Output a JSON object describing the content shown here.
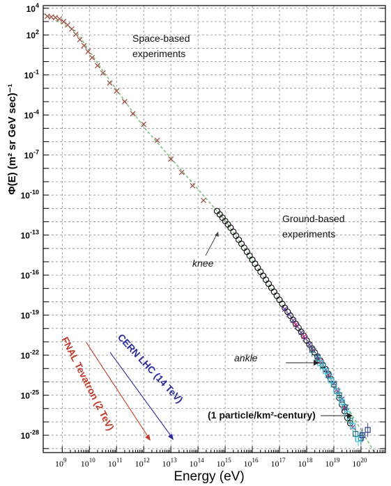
{
  "chart_data": {
    "type": "scatter",
    "title": "",
    "xlabel": "Energy (eV)",
    "ylabel": "Φ(E) (m² sr GeV sec)⁻¹",
    "xscale": "log",
    "yscale": "log",
    "xlim_exp": [
      8.3,
      20.9
    ],
    "ylim_exp": [
      -29.3,
      4.2
    ],
    "x_tick_labels": [
      {
        "exp": 9,
        "label": "10",
        "sup": "9"
      },
      {
        "exp": 10,
        "label": "10",
        "sup": "10"
      },
      {
        "exp": 11,
        "label": "10",
        "sup": "11"
      },
      {
        "exp": 12,
        "label": "10",
        "sup": "12"
      },
      {
        "exp": 13,
        "label": "10",
        "sup": "13"
      },
      {
        "exp": 14,
        "label": "10",
        "sup": "14"
      },
      {
        "exp": 15,
        "label": "10",
        "sup": "15"
      },
      {
        "exp": 16,
        "label": "10",
        "sup": "16"
      },
      {
        "exp": 17,
        "label": "10",
        "sup": "17"
      },
      {
        "exp": 18,
        "label": "10",
        "sup": "18"
      },
      {
        "exp": 19,
        "label": "10",
        "sup": "19"
      },
      {
        "exp": 20,
        "label": "10",
        "sup": "20"
      }
    ],
    "y_tick_labels": [
      {
        "exp": 4,
        "label": "10",
        "sup": "4"
      },
      {
        "exp": 2,
        "label": "10",
        "sup": "2"
      },
      {
        "exp": -1,
        "label": "10",
        "sup": "-1"
      },
      {
        "exp": -4,
        "label": "10",
        "sup": "-4"
      },
      {
        "exp": -7,
        "label": "10",
        "sup": "-7"
      },
      {
        "exp": -10,
        "label": "10",
        "sup": "-10"
      },
      {
        "exp": -13,
        "label": "10",
        "sup": "-13"
      },
      {
        "exp": -16,
        "label": "10",
        "sup": "-16"
      },
      {
        "exp": -19,
        "label": "10",
        "sup": "-19"
      },
      {
        "exp": -22,
        "label": "10",
        "sup": "-22"
      },
      {
        "exp": -25,
        "label": "10",
        "sup": "-25"
      },
      {
        "exp": -28,
        "label": "10",
        "sup": "-28"
      }
    ],
    "grid": true,
    "series": [
      {
        "color": "#a0524b",
        "marker": "cross",
        "points": [
          [
            8.45,
            3.4
          ],
          [
            8.6,
            3.35
          ],
          [
            8.75,
            3.3
          ],
          [
            8.9,
            3.2
          ],
          [
            9.05,
            3.0
          ],
          [
            9.2,
            2.75
          ],
          [
            9.35,
            2.45
          ],
          [
            9.5,
            2.05
          ],
          [
            9.65,
            1.65
          ],
          [
            9.8,
            1.2
          ],
          [
            9.95,
            0.75
          ],
          [
            10.1,
            0.3
          ],
          [
            10.3,
            -0.3
          ],
          [
            10.5,
            -0.85
          ],
          [
            10.75,
            -1.6
          ],
          [
            11.0,
            -2.2
          ],
          [
            11.3,
            -3.0
          ],
          [
            11.6,
            -3.9
          ],
          [
            12.0,
            -4.7
          ],
          [
            12.5,
            -5.9
          ],
          [
            13.0,
            -7.3
          ],
          [
            13.4,
            -8.3
          ],
          [
            13.8,
            -9.3
          ],
          [
            14.2,
            -10.4
          ]
        ]
      },
      {
        "color": "#000000",
        "marker": "circle",
        "points": [
          [
            14.7,
            -11.2
          ],
          [
            14.8,
            -11.45
          ],
          [
            14.9,
            -11.7
          ],
          [
            15.0,
            -11.95
          ],
          [
            15.1,
            -12.2
          ],
          [
            15.2,
            -12.45
          ],
          [
            15.3,
            -12.75
          ],
          [
            15.4,
            -13.05
          ],
          [
            15.5,
            -13.35
          ],
          [
            15.6,
            -13.65
          ],
          [
            15.7,
            -13.95
          ],
          [
            15.8,
            -14.25
          ],
          [
            15.9,
            -14.55
          ],
          [
            16.0,
            -14.85
          ],
          [
            16.1,
            -15.15
          ],
          [
            16.2,
            -15.45
          ],
          [
            16.3,
            -15.75
          ],
          [
            16.4,
            -16.05
          ],
          [
            16.5,
            -16.35
          ],
          [
            16.6,
            -16.65
          ],
          [
            16.7,
            -16.95
          ],
          [
            16.8,
            -17.25
          ],
          [
            16.9,
            -17.55
          ],
          [
            17.0,
            -17.85
          ],
          [
            17.1,
            -18.15
          ],
          [
            17.2,
            -18.45
          ],
          [
            17.3,
            -18.75
          ],
          [
            17.4,
            -19.05
          ],
          [
            17.5,
            -19.35
          ],
          [
            17.6,
            -19.65
          ],
          [
            17.7,
            -19.95
          ],
          [
            17.8,
            -20.25
          ],
          [
            17.9,
            -20.55
          ],
          [
            18.0,
            -20.9
          ],
          [
            18.1,
            -21.2
          ],
          [
            18.2,
            -21.5
          ],
          [
            18.3,
            -21.8
          ],
          [
            18.4,
            -22.1
          ],
          [
            18.5,
            -22.4
          ],
          [
            18.6,
            -22.75
          ],
          [
            18.7,
            -23.05
          ],
          [
            18.8,
            -23.4
          ],
          [
            18.9,
            -23.8
          ],
          [
            19.0,
            -24.2
          ],
          [
            19.1,
            -24.7
          ],
          [
            19.2,
            -25.2
          ],
          [
            19.3,
            -25.7
          ],
          [
            19.4,
            -26.2
          ],
          [
            19.5,
            -26.7
          ],
          [
            19.6,
            -27.1
          ]
        ]
      },
      {
        "color": "#5b3e9a",
        "marker": "cross",
        "points": [
          [
            17.2,
            -18.55
          ],
          [
            17.35,
            -18.95
          ],
          [
            17.5,
            -19.4
          ],
          [
            17.65,
            -19.85
          ],
          [
            17.8,
            -20.3
          ],
          [
            17.95,
            -20.75
          ],
          [
            18.1,
            -21.2
          ],
          [
            18.25,
            -21.65
          ],
          [
            18.4,
            -22.1
          ],
          [
            18.55,
            -22.6
          ],
          [
            18.7,
            -23.1
          ],
          [
            18.85,
            -23.6
          ],
          [
            19.0,
            -24.1
          ],
          [
            19.15,
            -24.7
          ],
          [
            19.3,
            -25.3
          ],
          [
            19.45,
            -25.9
          ]
        ]
      },
      {
        "color": "#c0307a",
        "marker": "cross",
        "points": [
          [
            17.6,
            -19.7
          ],
          [
            17.9,
            -20.6
          ],
          [
            18.2,
            -21.5
          ],
          [
            18.5,
            -22.45
          ],
          [
            18.8,
            -23.5
          ],
          [
            19.1,
            -24.6
          ],
          [
            19.4,
            -26.0
          ],
          [
            19.7,
            -27.4
          ]
        ]
      },
      {
        "color": "#1f6f7a",
        "marker": "square",
        "points": [
          [
            18.2,
            -21.6
          ],
          [
            18.4,
            -22.2
          ],
          [
            18.6,
            -22.8
          ],
          [
            18.8,
            -23.5
          ],
          [
            19.0,
            -24.2
          ],
          [
            19.2,
            -25.0
          ],
          [
            19.4,
            -25.9
          ],
          [
            19.6,
            -26.9
          ],
          [
            19.8,
            -27.9
          ],
          [
            20.0,
            -28.2
          ]
        ]
      },
      {
        "color": "#44c4d8",
        "marker": "square",
        "points": [
          [
            18.5,
            -22.6
          ],
          [
            18.7,
            -23.2
          ],
          [
            18.9,
            -23.9
          ],
          [
            19.1,
            -24.7
          ],
          [
            19.3,
            -25.5
          ],
          [
            19.5,
            -26.4
          ],
          [
            19.7,
            -27.3
          ],
          [
            19.9,
            -28.3
          ]
        ]
      },
      {
        "color": "#2a3d8f",
        "marker": "square",
        "points": [
          [
            20.05,
            -28.0
          ],
          [
            20.25,
            -27.6
          ]
        ]
      }
    ],
    "fit_line": {
      "color": "#7fbf7f",
      "style": "dashed",
      "points": [
        [
          8.3,
          3.6
        ],
        [
          9.5,
          2.3
        ],
        [
          10.5,
          -0.7
        ],
        [
          12.0,
          -4.9
        ],
        [
          15.0,
          -11.9
        ],
        [
          17.0,
          -17.9
        ],
        [
          19.0,
          -24.2
        ],
        [
          20.5,
          -29.3
        ]
      ]
    },
    "annotations": {
      "space": [
        "Space-based",
        "experiments"
      ],
      "ground": [
        "Ground-based",
        "experiments"
      ],
      "knee": "knee",
      "ankle": "ankle",
      "particle_rate": "(1 particle/km²-century)",
      "fnal": "FNAL Tevatron (2 TeV)",
      "lhc": "CERN LHC (14 TeV)"
    },
    "annotation_colors": {
      "fnal": "#c0392b",
      "lhc": "#2a2a9a"
    }
  }
}
